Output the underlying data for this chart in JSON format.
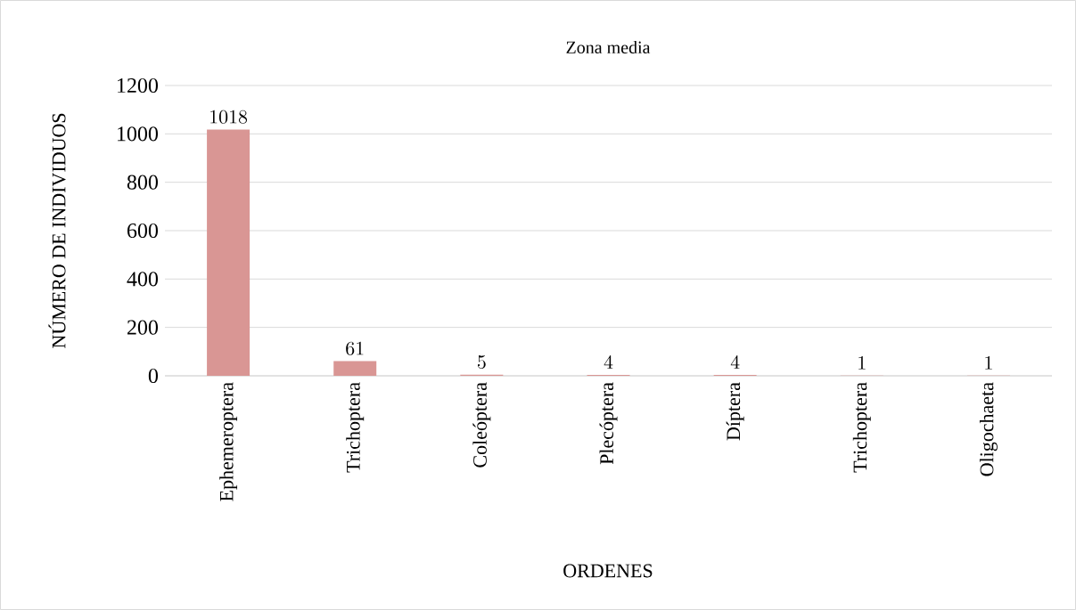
{
  "chart_data": {
    "type": "bar",
    "title": "Zona media",
    "xlabel": "ORDENES",
    "ylabel": "NÚMERO DE INDIVIDUOS",
    "categories": [
      "Ephemeroptera",
      "Trichoptera",
      "Coleóptera",
      "Plecóptera",
      "Díptera",
      "Trichoptera",
      "Oligochaeta"
    ],
    "values": [
      1018,
      61,
      5,
      4,
      4,
      1,
      1
    ],
    "color": "#d99694",
    "ylim": [
      0,
      1200
    ],
    "yticks": [
      0,
      200,
      400,
      600,
      800,
      1000,
      1200
    ],
    "grid": "y",
    "data_labels": true
  }
}
